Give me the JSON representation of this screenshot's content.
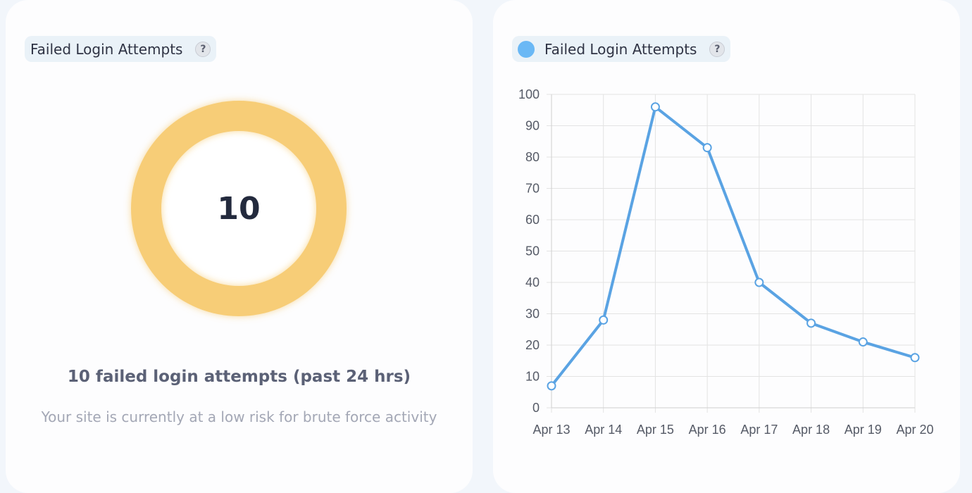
{
  "left_card": {
    "title": "Failed Login Attempts",
    "help_label": "?",
    "donut_value": "10",
    "summary": "10 failed login attempts (past 24 hrs)",
    "subtext": "Your site is currently at a low risk for brute force activity",
    "donut_color": "#f7cd77"
  },
  "right_card": {
    "title": "Failed Login Attempts",
    "help_label": "?",
    "legend_color": "#6ab8f5"
  },
  "chart_data": {
    "type": "line",
    "x": [
      "Apr 13",
      "Apr 14",
      "Apr 15",
      "Apr 16",
      "Apr 17",
      "Apr 18",
      "Apr 19",
      "Apr 20"
    ],
    "series": [
      {
        "name": "Failed Login Attempts",
        "values": [
          7,
          28,
          96,
          83,
          40,
          27,
          21,
          16
        ],
        "color": "#5aa3e3"
      }
    ],
    "ylim": [
      0,
      100
    ],
    "yticks": [
      0,
      10,
      20,
      30,
      40,
      50,
      60,
      70,
      80,
      90,
      100
    ],
    "grid": true,
    "legend": "top-left"
  }
}
